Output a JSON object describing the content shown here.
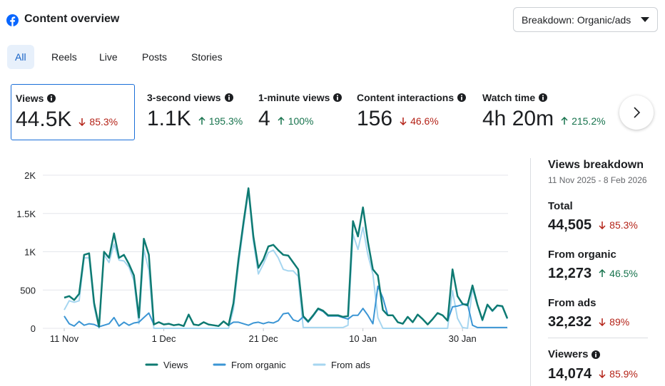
{
  "header": {
    "title": "Content overview",
    "dropdown": "Breakdown: Organic/ads"
  },
  "tabs": [
    {
      "label": "All",
      "selected": true
    },
    {
      "label": "Reels"
    },
    {
      "label": "Live"
    },
    {
      "label": "Posts"
    },
    {
      "label": "Stories"
    }
  ],
  "metrics": [
    {
      "label": "Views",
      "value": "44.5K",
      "change": "85.3%",
      "trend": "down",
      "selected": true
    },
    {
      "label": "3-second views",
      "value": "1.1K",
      "change": "195.3%",
      "trend": "up"
    },
    {
      "label": "1-minute views",
      "value": "4",
      "change": "100%",
      "trend": "up"
    },
    {
      "label": "Content interactions",
      "value": "156",
      "change": "46.6%",
      "trend": "down"
    },
    {
      "label": "Watch time",
      "value": "4h 20m",
      "change": "215.2%",
      "trend": "up"
    }
  ],
  "chart_data": {
    "type": "line",
    "categories": [
      "11 Nov",
      null,
      null,
      null,
      null,
      null,
      null,
      null,
      null,
      null,
      null,
      null,
      null,
      null,
      null,
      null,
      null,
      null,
      null,
      null,
      "1 Dec",
      null,
      null,
      null,
      null,
      null,
      null,
      null,
      null,
      null,
      null,
      null,
      null,
      null,
      null,
      null,
      null,
      null,
      null,
      null,
      "21 Dec",
      null,
      null,
      null,
      null,
      null,
      null,
      null,
      null,
      null,
      null,
      null,
      null,
      null,
      null,
      null,
      null,
      null,
      null,
      null,
      "10 Jan",
      null,
      null,
      null,
      null,
      null,
      null,
      null,
      null,
      null,
      null,
      null,
      null,
      null,
      null,
      null,
      null,
      null,
      null,
      null,
      "30 Jan",
      null,
      null,
      null,
      null,
      null,
      null,
      null,
      null,
      null
    ],
    "series": [
      {
        "name": "Views",
        "color": "#0e7a72",
        "values": [
          400,
          420,
          370,
          450,
          960,
          980,
          330,
          20,
          1000,
          920,
          1240,
          920,
          960,
          840,
          690,
          140,
          1170,
          960,
          50,
          80,
          50,
          60,
          40,
          50,
          30,
          180,
          50,
          40,
          80,
          50,
          40,
          30,
          90,
          40,
          330,
          900,
          1380,
          1830,
          1200,
          790,
          900,
          1070,
          1090,
          1020,
          960,
          950,
          860,
          770,
          160,
          90,
          170,
          260,
          230,
          170,
          170,
          170,
          150,
          160,
          1400,
          1200,
          1580,
          1130,
          770,
          690,
          240,
          170,
          170,
          80,
          60,
          150,
          80,
          180,
          120,
          50,
          120,
          200,
          170,
          100,
          770,
          420,
          320,
          300,
          560,
          310,
          110,
          310,
          230,
          300,
          290,
          130
        ]
      },
      {
        "name": "From organic",
        "color": "#3b95d4",
        "values": [
          160,
          60,
          30,
          90,
          40,
          60,
          50,
          20,
          40,
          60,
          140,
          30,
          80,
          40,
          70,
          80,
          140,
          200,
          50,
          80,
          50,
          60,
          40,
          50,
          30,
          180,
          50,
          40,
          80,
          50,
          40,
          30,
          90,
          40,
          80,
          80,
          60,
          40,
          70,
          80,
          60,
          80,
          70,
          100,
          190,
          200,
          110,
          90,
          150,
          80,
          160,
          250,
          220,
          160,
          160,
          160,
          140,
          120,
          170,
          170,
          260,
          170,
          60,
          550,
          400,
          170,
          170,
          80,
          60,
          150,
          80,
          180,
          120,
          50,
          120,
          200,
          170,
          100,
          280,
          290,
          310,
          320,
          40,
          10,
          10,
          10,
          10,
          10,
          10,
          10
        ]
      },
      {
        "name": "From ads",
        "color": "#a6d6f0",
        "values": [
          240,
          360,
          340,
          360,
          920,
          920,
          280,
          0,
          960,
          860,
          1100,
          890,
          880,
          800,
          620,
          60,
          1030,
          760,
          0,
          0,
          0,
          0,
          0,
          0,
          0,
          0,
          0,
          0,
          0,
          0,
          0,
          0,
          0,
          0,
          250,
          820,
          1320,
          1790,
          1130,
          710,
          840,
          990,
          1020,
          920,
          770,
          750,
          750,
          680,
          10,
          10,
          10,
          10,
          10,
          10,
          10,
          10,
          10,
          40,
          1230,
          1030,
          1320,
          960,
          710,
          140,
          0,
          0,
          0,
          0,
          0,
          0,
          0,
          0,
          0,
          0,
          0,
          0,
          0,
          0,
          490,
          130,
          10,
          0,
          520,
          300,
          100,
          300,
          220,
          290,
          280,
          120
        ]
      }
    ],
    "ylim": [
      0,
      2000
    ],
    "yticks": [
      0,
      500,
      {
        "value": 1000,
        "label": "1K"
      },
      {
        "value": 1500,
        "label": "1.5K"
      },
      {
        "value": 2000,
        "label": "2K"
      }
    ],
    "grid": true
  },
  "breakdown": {
    "title": "Views breakdown",
    "date_range": "11 Nov 2025 - 8 Feb 2026",
    "items": [
      {
        "label": "Total",
        "value": "44,505",
        "change": "85.3%",
        "trend": "down"
      },
      {
        "label": "From organic",
        "value": "12,273",
        "change": "46.5%",
        "trend": "up"
      },
      {
        "label": "From ads",
        "value": "32,232",
        "change": "89%",
        "trend": "down"
      },
      {
        "label": "Viewers",
        "value": "14,074",
        "change": "85.9%",
        "trend": "down",
        "info": true
      }
    ]
  }
}
